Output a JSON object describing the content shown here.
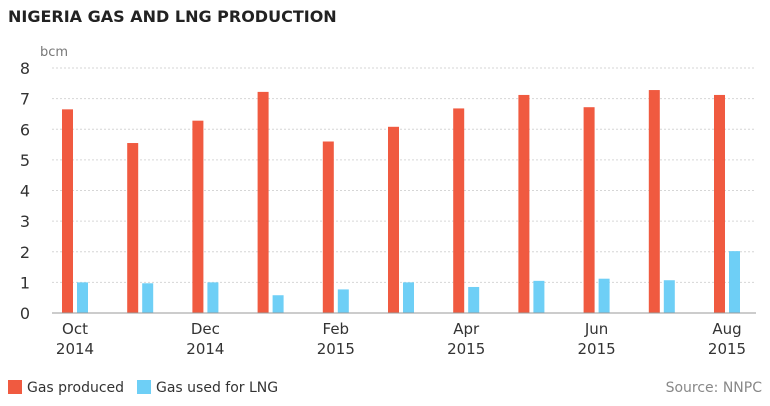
{
  "chart_data": {
    "type": "bar",
    "title": "NIGERIA GAS AND LNG PRODUCTION",
    "ylabel": "bcm",
    "xlabel": "",
    "ylim": [
      0,
      8
    ],
    "yticks": [
      "0",
      "1",
      "2",
      "3",
      "4",
      "5",
      "6",
      "7",
      "8"
    ],
    "grid": true,
    "categories": [
      "Oct 2014",
      "Nov 2014",
      "Dec 2014",
      "Jan 2015",
      "Feb 2015",
      "Mar 2015",
      "Apr 2015",
      "May 2015",
      "Jun 2015",
      "Jul 2015",
      "Aug 2015"
    ],
    "tick_labels": [
      {
        "index": 0,
        "month": "Oct",
        "year": "2014"
      },
      {
        "index": 2,
        "month": "Dec",
        "year": "2014"
      },
      {
        "index": 4,
        "month": "Feb",
        "year": "2015"
      },
      {
        "index": 6,
        "month": "Apr",
        "year": "2015"
      },
      {
        "index": 8,
        "month": "Jun",
        "year": "2015"
      },
      {
        "index": 10,
        "month": "Aug",
        "year": "2015"
      }
    ],
    "series": [
      {
        "name": "Gas produced",
        "color": "#f05a40",
        "values": [
          6.65,
          5.55,
          6.28,
          7.22,
          5.6,
          6.08,
          6.68,
          7.12,
          6.72,
          7.28,
          7.12
        ]
      },
      {
        "name": "Gas used for LNG",
        "color": "#6ecff6",
        "values": [
          1.0,
          0.97,
          1.0,
          0.58,
          0.77,
          1.0,
          0.85,
          1.05,
          1.12,
          1.07,
          2.02
        ]
      }
    ],
    "legend": "bottom-left",
    "source": "Source: NNPC"
  }
}
